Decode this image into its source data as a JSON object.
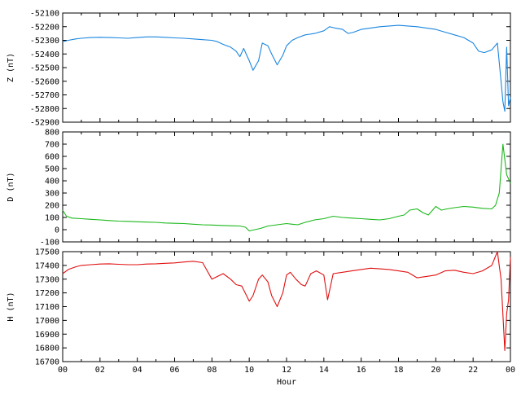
{
  "chart_data": [
    {
      "type": "line",
      "ylabel": "Z (nT)",
      "ylim": [
        -52900,
        -52100
      ],
      "yticks": [
        "-52100",
        "-52200",
        "-52300",
        "-52400",
        "-52500",
        "-52600",
        "-52700",
        "-52800",
        "-52900"
      ],
      "xlim": [
        0,
        24
      ],
      "color": "#1a86e0",
      "series": [
        {
          "x": [
            0,
            0.3,
            0.7,
            1,
            1.5,
            2,
            2.5,
            3,
            3.5,
            4,
            4.5,
            5,
            5.5,
            6,
            6.5,
            7,
            7.5,
            8,
            8.3,
            8.6,
            9,
            9.3,
            9.5,
            9.7,
            10,
            10.2,
            10.5,
            10.7,
            11,
            11.2,
            11.5,
            11.8,
            12,
            12.3,
            12.6,
            13,
            13.5,
            14,
            14.3,
            14.6,
            15,
            15.3,
            15.6,
            16,
            16.5,
            17,
            17.5,
            18,
            18.5,
            19,
            19.5,
            20,
            20.5,
            21,
            21.5,
            22,
            22.3,
            22.6,
            23,
            23.3,
            23.5,
            23.6,
            23.7,
            23.8,
            23.9,
            24
          ],
          "values": [
            -52310,
            -52300,
            -52290,
            -52285,
            -52280,
            -52278,
            -52280,
            -52282,
            -52285,
            -52280,
            -52275,
            -52275,
            -52278,
            -52282,
            -52285,
            -52290,
            -52295,
            -52300,
            -52310,
            -52330,
            -52350,
            -52380,
            -52420,
            -52360,
            -52450,
            -52520,
            -52450,
            -52320,
            -52340,
            -52400,
            -52480,
            -52410,
            -52340,
            -52300,
            -52280,
            -52260,
            -52250,
            -52230,
            -52200,
            -52210,
            -52220,
            -52250,
            -52240,
            -52220,
            -52210,
            -52200,
            -52195,
            -52190,
            -52195,
            -52200,
            -52210,
            -52220,
            -52240,
            -52260,
            -52280,
            -52320,
            -52380,
            -52390,
            -52370,
            -52320,
            -52600,
            -52750,
            -52820,
            -52350,
            -52780,
            -52720
          ]
        }
      ]
    },
    {
      "type": "line",
      "ylabel": "D (nT)",
      "ylim": [
        -100,
        800
      ],
      "yticks": [
        "800",
        "700",
        "600",
        "500",
        "400",
        "300",
        "200",
        "100",
        "0",
        "-100"
      ],
      "xlim": [
        0,
        24
      ],
      "color": "#1ab81a",
      "series": [
        {
          "x": [
            0,
            0.2,
            0.5,
            1,
            1.5,
            2,
            2.5,
            3,
            3.5,
            4,
            4.5,
            5,
            5.5,
            6,
            6.5,
            7,
            7.5,
            8,
            8.5,
            9,
            9.5,
            9.8,
            10,
            10.3,
            10.6,
            11,
            11.5,
            12,
            12.3,
            12.6,
            13,
            13.5,
            14,
            14.5,
            15,
            15.5,
            16,
            16.5,
            17,
            17.5,
            18,
            18.3,
            18.6,
            19,
            19.3,
            19.6,
            20,
            20.3,
            20.6,
            21,
            21.5,
            22,
            22.5,
            23,
            23.2,
            23.4,
            23.6,
            23.8,
            24
          ],
          "values": [
            160,
            110,
            95,
            90,
            85,
            80,
            75,
            70,
            68,
            65,
            62,
            60,
            55,
            52,
            50,
            45,
            40,
            38,
            35,
            32,
            30,
            20,
            -10,
            0,
            10,
            30,
            40,
            50,
            45,
            40,
            60,
            80,
            90,
            110,
            100,
            95,
            90,
            85,
            80,
            90,
            110,
            120,
            160,
            170,
            140,
            120,
            190,
            160,
            170,
            180,
            190,
            185,
            175,
            170,
            200,
            300,
            700,
            450,
            380
          ]
        }
      ]
    },
    {
      "type": "line",
      "ylabel": "H (nT)",
      "ylim": [
        16700,
        17500
      ],
      "yticks": [
        "17500",
        "17400",
        "17300",
        "17200",
        "17100",
        "17000",
        "16900",
        "16800",
        "16700"
      ],
      "xlim": [
        0,
        24
      ],
      "xlabel": "Hour",
      "xtick_labels": [
        "00",
        "02",
        "04",
        "06",
        "08",
        "10",
        "12",
        "14",
        "16",
        "18",
        "20",
        "22",
        "00"
      ],
      "color": "#e01010",
      "series": [
        {
          "x": [
            0,
            0.3,
            0.7,
            1,
            1.5,
            2,
            2.5,
            3,
            3.5,
            4,
            4.5,
            5,
            5.5,
            6,
            6.5,
            7,
            7.5,
            8,
            8.3,
            8.6,
            9,
            9.3,
            9.6,
            10,
            10.2,
            10.5,
            10.7,
            11,
            11.2,
            11.5,
            11.8,
            12,
            12.2,
            12.5,
            12.8,
            13,
            13.3,
            13.6,
            14,
            14.2,
            14.5,
            15,
            15.5,
            16,
            16.5,
            17,
            17.5,
            18,
            18.5,
            19,
            19.5,
            20,
            20.5,
            21,
            21.5,
            22,
            22.5,
            23,
            23.3,
            23.5,
            23.7,
            23.8,
            23.9,
            24
          ],
          "values": [
            17340,
            17370,
            17390,
            17400,
            17405,
            17410,
            17412,
            17408,
            17405,
            17405,
            17410,
            17412,
            17415,
            17418,
            17425,
            17430,
            17420,
            17300,
            17320,
            17340,
            17300,
            17260,
            17250,
            17140,
            17180,
            17300,
            17330,
            17280,
            17180,
            17100,
            17200,
            17330,
            17350,
            17300,
            17260,
            17250,
            17340,
            17360,
            17330,
            17150,
            17340,
            17350,
            17360,
            17370,
            17380,
            17375,
            17370,
            17360,
            17350,
            17310,
            17320,
            17330,
            17360,
            17365,
            17350,
            17340,
            17360,
            17400,
            17500,
            17300,
            16780,
            17050,
            17150,
            17460
          ]
        }
      ]
    }
  ]
}
